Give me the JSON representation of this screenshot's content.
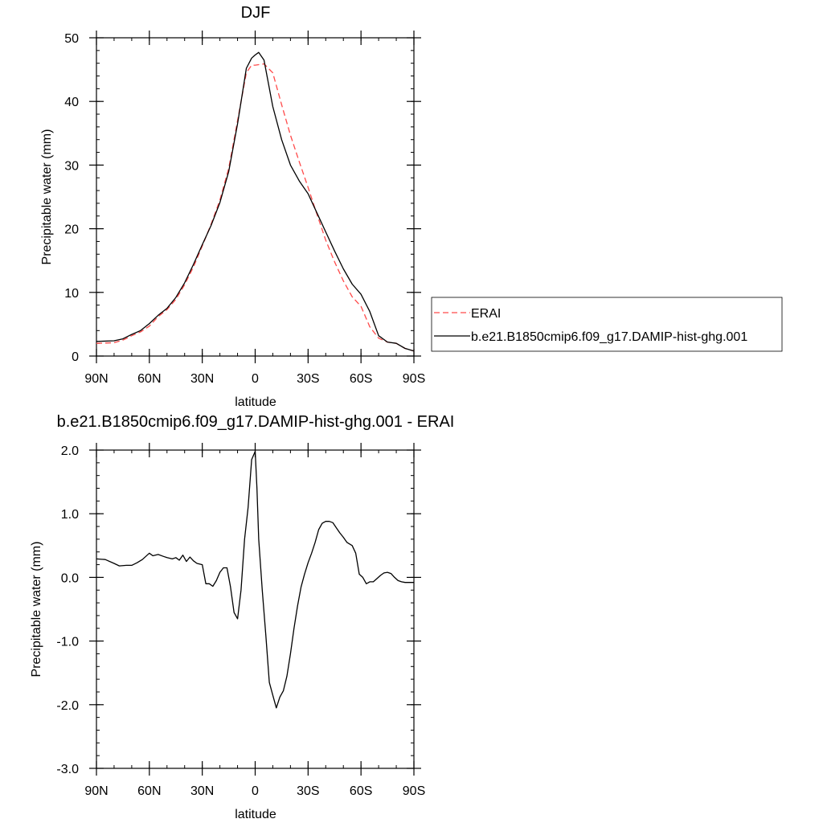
{
  "chart_data": [
    {
      "type": "line",
      "title": "DJF",
      "xlabel": "latitude",
      "ylabel": "Precipitable water (mm)",
      "xlim": [
        90,
        -90
      ],
      "ylim": [
        0,
        50
      ],
      "xticks": [
        90,
        60,
        30,
        0,
        -30,
        -60,
        -90
      ],
      "xtick_labels": [
        "90N",
        "60N",
        "30N",
        "0",
        "30S",
        "60S",
        "90S"
      ],
      "yticks": [
        0,
        10,
        20,
        30,
        40,
        50
      ],
      "ytick_labels": [
        "0",
        "10",
        "20",
        "30",
        "40",
        "50"
      ],
      "legend": {
        "position": "right",
        "entries": [
          {
            "label": "ERAI",
            "color": "#ff4a4a",
            "dash": "dashed"
          },
          {
            "label": "b.e21.B1850cmip6.f09_g17.DAMIP-hist-ghg.001",
            "color": "#000000",
            "dash": "solid"
          }
        ]
      },
      "series": [
        {
          "name": "ERAI",
          "color": "#ff4a4a",
          "dash": "dashed",
          "x": [
            90,
            80,
            75,
            70,
            65,
            60,
            55,
            50,
            45,
            40,
            35,
            30,
            25,
            20,
            15,
            10,
            5,
            2,
            0,
            -5,
            -10,
            -15,
            -20,
            -25,
            -30,
            -35,
            -40,
            -45,
            -50,
            -55,
            -60,
            -65,
            -70,
            -75,
            -80,
            -85,
            -90
          ],
          "y": [
            2.0,
            2.1,
            2.5,
            3.2,
            3.8,
            4.7,
            6.2,
            7.3,
            8.9,
            11.2,
            14.0,
            17.3,
            20.7,
            24.5,
            29.5,
            37.0,
            44.5,
            45.7,
            45.7,
            45.9,
            44.5,
            39.5,
            34.7,
            30.5,
            26.5,
            22.3,
            18.2,
            14.8,
            11.8,
            9.3,
            7.8,
            4.6,
            2.8,
            2.2,
            2.0,
            1.2,
            0.8
          ]
        },
        {
          "name": "b.e21.B1850cmip6.f09_g17.DAMIP-hist-ghg.001",
          "color": "#000000",
          "dash": "solid",
          "x": [
            90,
            80,
            75,
            70,
            65,
            60,
            55,
            50,
            45,
            40,
            35,
            30,
            25,
            20,
            15,
            10,
            5,
            2,
            0,
            -2,
            -5,
            -10,
            -15,
            -20,
            -25,
            -30,
            -35,
            -40,
            -45,
            -50,
            -55,
            -60,
            -65,
            -70,
            -75,
            -80,
            -85,
            -90
          ],
          "y": [
            2.3,
            2.4,
            2.7,
            3.4,
            4.0,
            5.1,
            6.4,
            7.5,
            9.2,
            11.5,
            14.4,
            17.5,
            20.5,
            24.1,
            29.0,
            36.5,
            45.2,
            46.8,
            47.3,
            47.7,
            46.5,
            39.2,
            34.0,
            30.0,
            27.5,
            25.5,
            22.5,
            19.5,
            16.5,
            13.7,
            11.3,
            9.7,
            7.0,
            3.2,
            2.2,
            2.0,
            1.2,
            0.8
          ]
        }
      ]
    },
    {
      "type": "line",
      "title": "b.e21.B1850cmip6.f09_g17.DAMIP-hist-ghg.001 - ERAI",
      "xlabel": "latitude",
      "ylabel": "Precipitable water (mm)",
      "xlim": [
        90,
        -90
      ],
      "ylim": [
        -3,
        2
      ],
      "xticks": [
        90,
        60,
        30,
        0,
        -30,
        -60,
        -90
      ],
      "xtick_labels": [
        "90N",
        "60N",
        "30N",
        "0",
        "30S",
        "60S",
        "90S"
      ],
      "yticks": [
        2,
        1,
        0,
        -1,
        -2,
        -3
      ],
      "ytick_labels": [
        "2.0",
        "1.0",
        "0.0",
        "-1.0",
        "-2.0",
        "-3.0"
      ],
      "series": [
        {
          "color": "#000000",
          "dash": "solid",
          "x": [
            90,
            85,
            80,
            77,
            73,
            70,
            67,
            64,
            62,
            60,
            58,
            55,
            52,
            50,
            47,
            45,
            43,
            41,
            39,
            37,
            35,
            33,
            30,
            28,
            26,
            24,
            22,
            20,
            18,
            16,
            14,
            12,
            10,
            8,
            6,
            4,
            2,
            0,
            -1,
            -2,
            -4,
            -6,
            -8,
            -10,
            -12,
            -14,
            -16,
            -18,
            -20,
            -22,
            -24,
            -26,
            -28,
            -30,
            -32,
            -34,
            -36,
            -38,
            -40,
            -42,
            -44,
            -46,
            -48,
            -50,
            -52,
            -55,
            -57,
            -59,
            -61,
            -63,
            -65,
            -67,
            -69,
            -71,
            -73,
            -75,
            -77,
            -79,
            -81,
            -83,
            -85,
            -87,
            -90
          ],
          "y": [
            0.29,
            0.28,
            0.22,
            0.18,
            0.19,
            0.19,
            0.23,
            0.28,
            0.33,
            0.38,
            0.34,
            0.36,
            0.33,
            0.31,
            0.29,
            0.31,
            0.27,
            0.35,
            0.25,
            0.32,
            0.26,
            0.22,
            0.2,
            -0.1,
            -0.1,
            -0.14,
            -0.05,
            0.08,
            0.15,
            0.15,
            -0.15,
            -0.55,
            -0.65,
            -0.2,
            0.6,
            1.1,
            1.85,
            1.98,
            1.4,
            0.6,
            -0.2,
            -0.9,
            -1.65,
            -1.85,
            -2.05,
            -1.88,
            -1.78,
            -1.55,
            -1.2,
            -0.8,
            -0.45,
            -0.15,
            0.05,
            0.23,
            0.38,
            0.55,
            0.75,
            0.85,
            0.88,
            0.88,
            0.86,
            0.78,
            0.7,
            0.63,
            0.55,
            0.5,
            0.38,
            0.05,
            0.0,
            -0.1,
            -0.07,
            -0.07,
            -0.02,
            0.03,
            0.07,
            0.08,
            0.06,
            0.0,
            -0.05,
            -0.07,
            -0.08,
            -0.08,
            -0.08
          ]
        }
      ]
    }
  ]
}
